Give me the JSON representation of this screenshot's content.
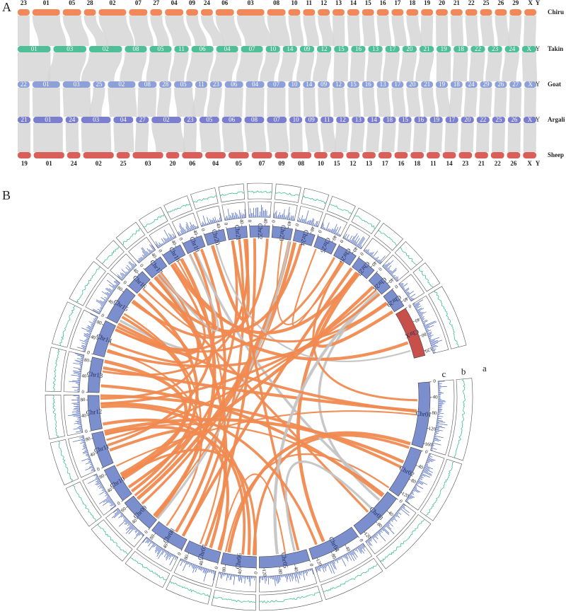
{
  "panel_a": {
    "label": "A",
    "tracks": [
      {
        "name": "Chiru",
        "color": "#f0885a",
        "chromosomes": [
          "23",
          "01",
          "05",
          "28",
          "02",
          "07",
          "27",
          "04",
          "09",
          "24",
          "06",
          "03",
          "08",
          "10",
          "11",
          "12",
          "13",
          "14",
          "15",
          "16",
          "17",
          "18",
          "19",
          "20",
          "21",
          "22",
          "25",
          "26",
          "29",
          "X",
          "Y"
        ]
      },
      {
        "name": "Takin",
        "color": "#4fbf98",
        "chromosomes": [
          "01",
          "03",
          "02",
          "08",
          "05",
          "11",
          "06",
          "04",
          "07",
          "10",
          "14",
          "09",
          "12",
          "15",
          "16",
          "13",
          "17",
          "20",
          "21",
          "19",
          "18",
          "22",
          "23",
          "24",
          "X",
          "Y"
        ]
      },
      {
        "name": "Goat",
        "color": "#8da0d8",
        "chromosomes": [
          "22",
          "01",
          "03",
          "25",
          "02",
          "08",
          "28",
          "05",
          "11",
          "23",
          "06",
          "04",
          "07",
          "10",
          "14",
          "09",
          "12",
          "15",
          "16",
          "13",
          "17",
          "20",
          "21",
          "19",
          "18",
          "24",
          "29",
          "26",
          "27",
          "X",
          "Y"
        ]
      },
      {
        "name": "Argali",
        "color": "#7b7fd0",
        "chromosomes": [
          "21",
          "01",
          "24",
          "03",
          "04",
          "27",
          "02",
          "23",
          "05",
          "06",
          "08",
          "07",
          "10",
          "09",
          "11",
          "12",
          "13",
          "14",
          "18",
          "15",
          "16",
          "19",
          "17",
          "20",
          "22",
          "25",
          "26",
          "X",
          "Y"
        ]
      },
      {
        "name": "Sheep",
        "color": "#d9605a",
        "chromosomes": [
          "19",
          "01",
          "24",
          "02",
          "25",
          "03",
          "20",
          "06",
          "04",
          "05",
          "07",
          "09",
          "08",
          "10",
          "15",
          "12",
          "13",
          "17",
          "16",
          "18",
          "11",
          "14",
          "23",
          "21",
          "22",
          "26",
          "X",
          "Y"
        ]
      }
    ]
  },
  "panel_b": {
    "label": "B",
    "ideogram_color": "#7b8fcf",
    "x_color": "#c8504a",
    "link_color": "#f08a50",
    "track_labels": [
      "a",
      "b",
      "c"
    ],
    "chromosomes": [
      {
        "name": "Chr01",
        "ticks": [
          0,
          40,
          80,
          120,
          160
        ]
      },
      {
        "name": "Chr02",
        "ticks": [
          0,
          40,
          80,
          120
        ]
      },
      {
        "name": "Chr03",
        "ticks": [
          0,
          40,
          80,
          120
        ]
      },
      {
        "name": "Chr04",
        "ticks": [
          0,
          40,
          80,
          120
        ]
      },
      {
        "name": "Chr05",
        "ticks": [
          0,
          40,
          80,
          120
        ]
      },
      {
        "name": "Chr06",
        "ticks": [
          0,
          40,
          80
        ]
      },
      {
        "name": "Chr07",
        "ticks": [
          0,
          40,
          80
        ]
      },
      {
        "name": "Chr08",
        "ticks": [
          0,
          40,
          80
        ]
      },
      {
        "name": "Chr09",
        "ticks": [
          0,
          40,
          80
        ]
      },
      {
        "name": "Chr10",
        "ticks": [
          0,
          40,
          80
        ]
      },
      {
        "name": "Chr11",
        "ticks": [
          0,
          40,
          80
        ]
      },
      {
        "name": "Chr12",
        "ticks": [
          0,
          40,
          80
        ]
      },
      {
        "name": "Chr13",
        "ticks": [
          0,
          40,
          80
        ]
      },
      {
        "name": "Chr14",
        "ticks": [
          0,
          40,
          80
        ]
      },
      {
        "name": "Chr15",
        "ticks": [
          0,
          40,
          80
        ]
      },
      {
        "name": "Chr16",
        "ticks": [
          0,
          40
        ]
      },
      {
        "name": "Chr17",
        "ticks": [
          0,
          40
        ]
      },
      {
        "name": "Chr18",
        "ticks": [
          0,
          40
        ]
      },
      {
        "name": "Chr19",
        "ticks": [
          0,
          40
        ]
      },
      {
        "name": "Chr20",
        "ticks": [
          0,
          40
        ]
      },
      {
        "name": "Chr21",
        "ticks": [
          0,
          40
        ]
      },
      {
        "name": "Chr22",
        "ticks": [
          0,
          40
        ]
      },
      {
        "name": "Chr23",
        "ticks": [
          0,
          40
        ]
      },
      {
        "name": "Chr24",
        "ticks": [
          0,
          40
        ]
      },
      {
        "name": "Chr25",
        "ticks": [
          0,
          40
        ]
      },
      {
        "name": "Chr26",
        "ticks": [
          0,
          40
        ]
      },
      {
        "name": "Chr27",
        "ticks": [
          0,
          40
        ]
      },
      {
        "name": "Chr28",
        "ticks": [
          0,
          40
        ]
      },
      {
        "name": "Chr29",
        "ticks": [
          0,
          40
        ]
      },
      {
        "name": "ChrX",
        "ticks": [
          0,
          40,
          80,
          120
        ]
      }
    ]
  }
}
